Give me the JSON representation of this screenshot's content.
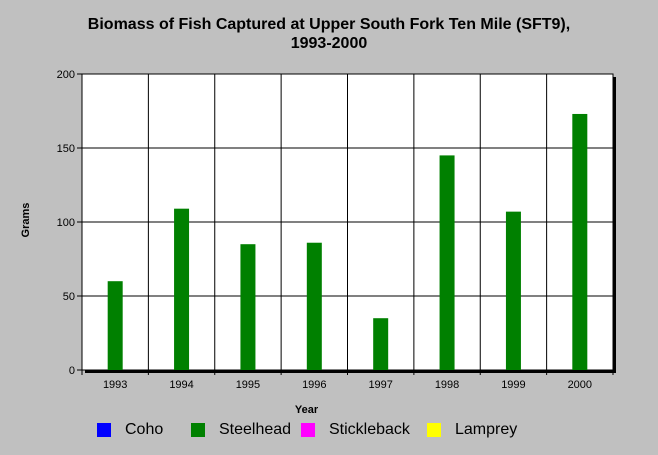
{
  "chart_data": {
    "type": "bar",
    "title_line1": "Biomass of Fish Captured at Upper South Fork Ten Mile (SFT9),",
    "title_line2": "1993-2000",
    "xlabel": "Year",
    "ylabel": "Grams",
    "ylim": [
      0,
      200
    ],
    "yticks": [
      0,
      50,
      100,
      150,
      200
    ],
    "categories": [
      "1993",
      "1994",
      "1995",
      "1996",
      "1997",
      "1998",
      "1999",
      "2000"
    ],
    "series": [
      {
        "name": "Coho",
        "color": "#0000ff",
        "values": [
          0,
          0,
          0,
          0,
          0,
          0,
          0,
          0
        ]
      },
      {
        "name": "Steelhead",
        "color": "#008000",
        "values": [
          60,
          109,
          85,
          86,
          35,
          145,
          107,
          173
        ]
      },
      {
        "name": "Stickleback",
        "color": "#ff00ff",
        "values": [
          0,
          0,
          0,
          0,
          0,
          0,
          0,
          0
        ]
      },
      {
        "name": "Lamprey",
        "color": "#ffff00",
        "values": [
          0,
          0,
          0,
          0,
          0,
          0,
          0,
          0
        ]
      }
    ],
    "grid": true,
    "legend_position": "bottom"
  }
}
